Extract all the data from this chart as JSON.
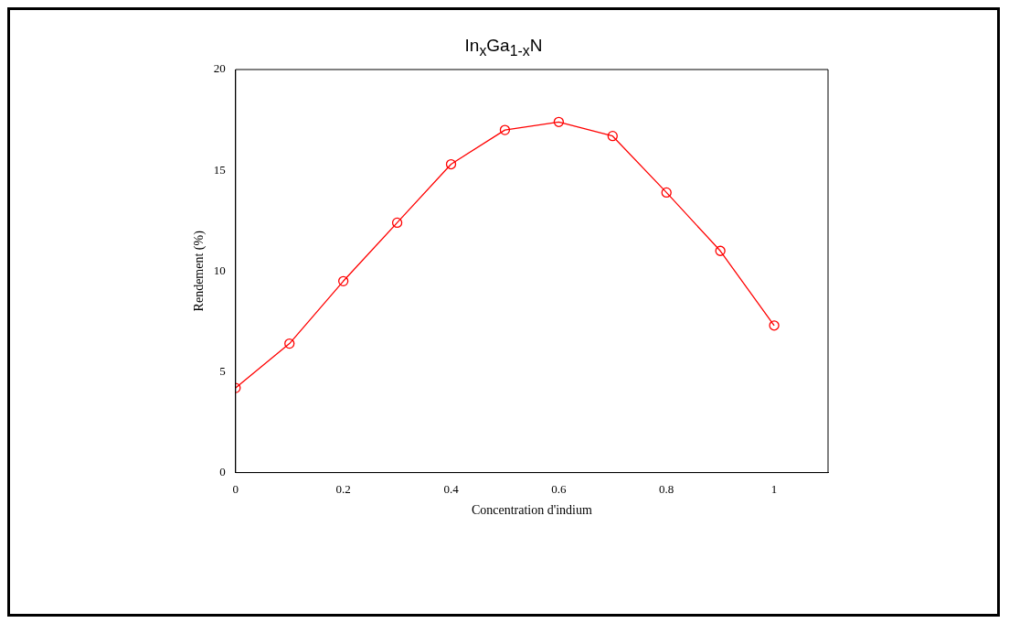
{
  "chart_data": {
    "type": "line",
    "title": "In$_{x}$Ga$_{1-x}$N",
    "xlabel": "Concentration d'indium",
    "ylabel": "Rendement (%)",
    "x": [
      0,
      0.1,
      0.2,
      0.3,
      0.4,
      0.5,
      0.6,
      0.7,
      0.8,
      0.9,
      1.0
    ],
    "series": [
      {
        "color": "#ff0000",
        "values": [
          4.2,
          6.4,
          9.5,
          12.4,
          15.3,
          17.0,
          17.4,
          16.7,
          13.9,
          11.0,
          7.3
        ]
      }
    ],
    "xlim": [
      0,
      1.1
    ],
    "xticks": [
      0,
      0.2,
      0.4,
      0.6,
      0.8,
      1
    ],
    "ylim": [
      0,
      20
    ],
    "yticks": [
      0,
      5,
      10,
      15,
      20
    ],
    "grid": false,
    "legend": false,
    "marker": "circle",
    "line_style": "solid"
  }
}
